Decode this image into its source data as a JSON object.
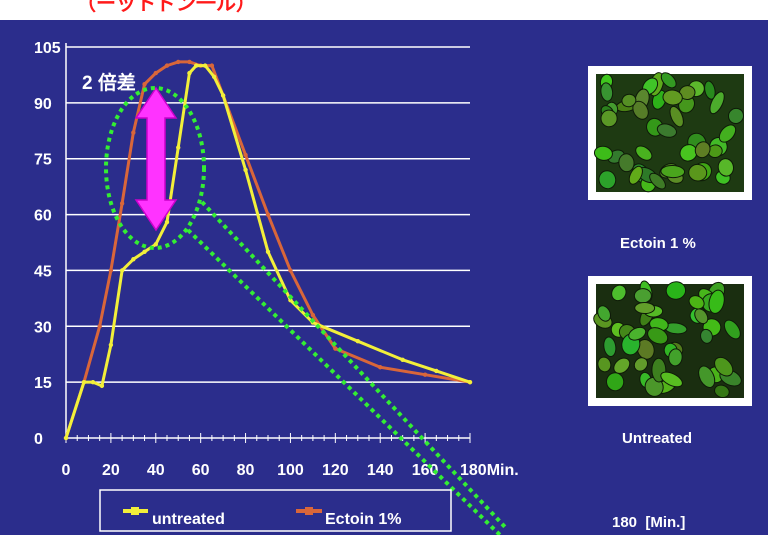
{
  "header": {
    "title_fragment": "（ーットドン一ル）",
    "title_color": "#ff1a1a"
  },
  "colors": {
    "background": "#2b2d8c",
    "grid": "#ffffff",
    "untreated": "#f2ef3a",
    "ectoin": "#d9663a",
    "annotation_arrow": "#ff33ff",
    "highlight_circle": "#33ee33"
  },
  "annotation": {
    "text": "2 倍差"
  },
  "images": [
    {
      "caption": "Ectoin 1 %",
      "icon": "green-fluorescent-cells-image"
    },
    {
      "caption": "Untreated",
      "icon": "green-fluorescent-cells-image"
    }
  ],
  "time_label": "180  [Min.]",
  "chart_data": {
    "type": "line",
    "title": "",
    "xlabel": "Min.",
    "ylabel": "",
    "xlim": [
      0,
      180
    ],
    "ylim": [
      0,
      105
    ],
    "x_ticks": [
      0,
      20,
      40,
      60,
      80,
      100,
      120,
      140,
      160,
      180
    ],
    "x_tick_labels": [
      "0",
      "20",
      "40",
      "60",
      "80",
      "100",
      "120",
      "140",
      "160",
      "180Min."
    ],
    "y_ticks": [
      0,
      15,
      30,
      45,
      60,
      75,
      90,
      105
    ],
    "grid": true,
    "legend_position": "bottom",
    "series": [
      {
        "name": "untreated",
        "x": [
          0,
          8,
          12,
          16,
          20,
          25,
          30,
          35,
          40,
          45,
          50,
          55,
          58,
          62,
          66,
          70,
          80,
          90,
          100,
          110,
          130,
          150,
          165,
          180
        ],
        "y": [
          0,
          15,
          15,
          14,
          25,
          45,
          48,
          50,
          52,
          58,
          78,
          98,
          100,
          100,
          97,
          92,
          72,
          50,
          37,
          31,
          26,
          21,
          18,
          15
        ]
      },
      {
        "name": "Ectoin 1%",
        "x": [
          0,
          8,
          15,
          20,
          25,
          30,
          35,
          40,
          45,
          50,
          55,
          60,
          65,
          70,
          80,
          90,
          100,
          110,
          120,
          140,
          160,
          180
        ],
        "y": [
          0,
          15,
          30,
          45,
          63,
          82,
          95,
          98,
          100,
          101,
          101,
          100,
          100,
          92,
          76,
          60,
          45,
          33,
          24,
          19,
          17,
          15
        ]
      }
    ]
  }
}
